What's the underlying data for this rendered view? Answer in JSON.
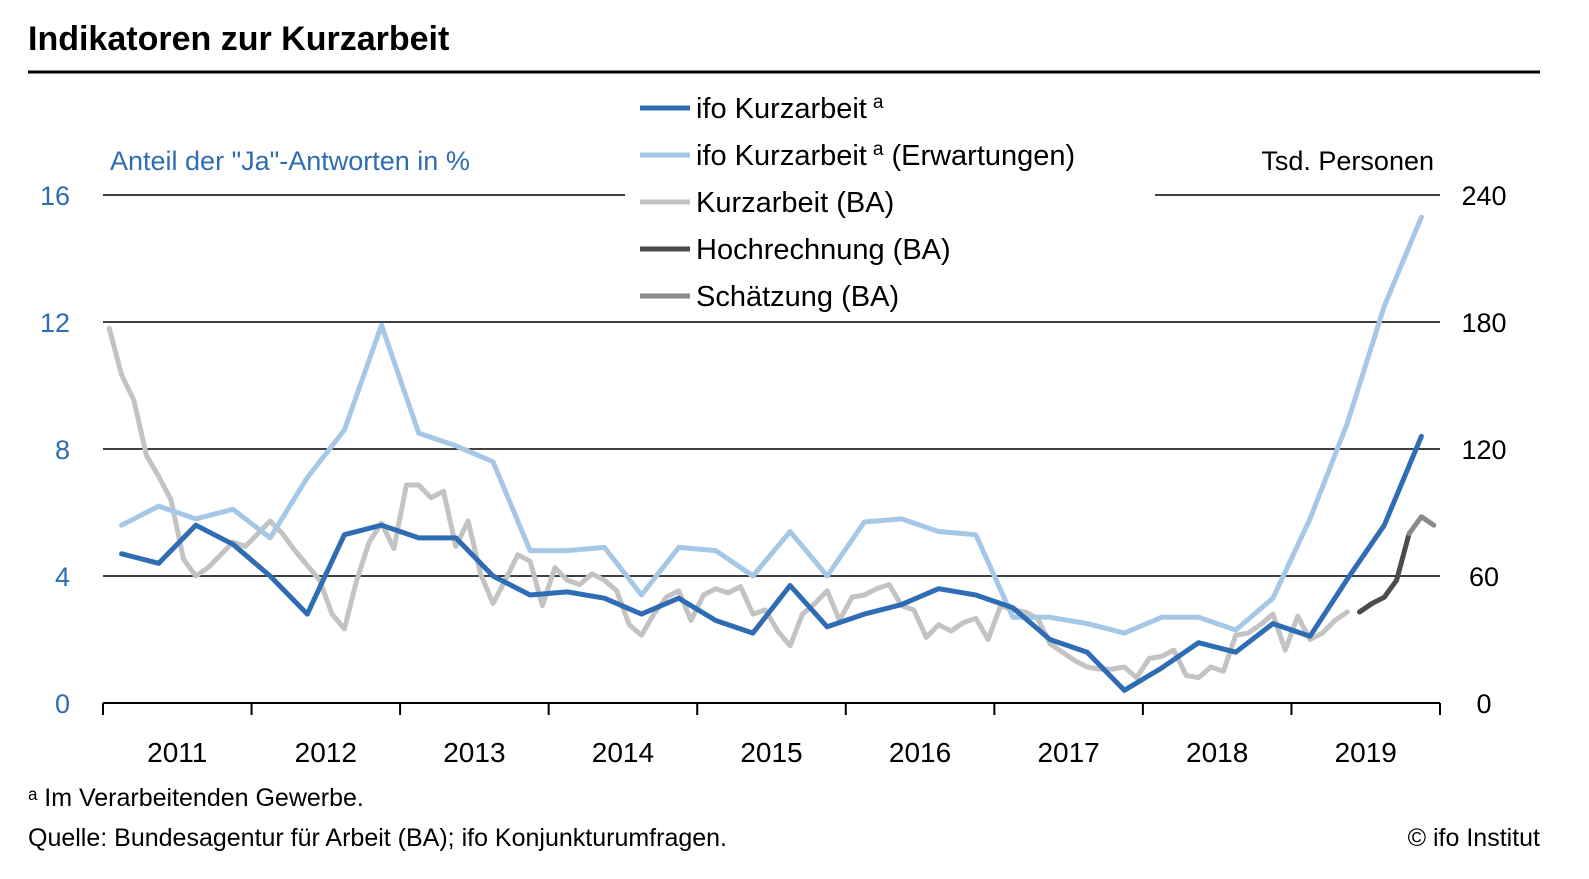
{
  "chart_data": {
    "type": "line",
    "title": "Indikatoren zur Kurzarbeit",
    "ylabel_left": "Anteil der \"Ja\"-Antworten in %",
    "ylabel_right": "Tsd. Personen",
    "ylim_left": [
      0,
      16
    ],
    "ylim_right": [
      0,
      240
    ],
    "yticks_left": [
      "0",
      "4",
      "8",
      "12",
      "16"
    ],
    "yticks_right": [
      "0",
      "60",
      "120",
      "180",
      "240"
    ],
    "xlim": [
      2010.5,
      2019.5
    ],
    "years": [
      "2011",
      "2012",
      "2013",
      "2014",
      "2015",
      "2016",
      "2017",
      "2018",
      "2019"
    ],
    "grid": "horizontal",
    "legend_position": "top-center",
    "series": [
      {
        "name": "ifo Kurzarbeit",
        "superscript": "a",
        "axis": "left",
        "color": "#2e6db4",
        "x": [
          2010.625,
          2010.875,
          2011.125,
          2011.375,
          2011.625,
          2011.875,
          2012.125,
          2012.375,
          2012.625,
          2012.875,
          2013.125,
          2013.375,
          2013.625,
          2013.875,
          2014.125,
          2014.375,
          2014.625,
          2014.875,
          2015.125,
          2015.375,
          2015.625,
          2015.875,
          2016.125,
          2016.375,
          2016.625,
          2016.875,
          2017.125,
          2017.375,
          2017.625,
          2017.875,
          2018.125,
          2018.375,
          2018.625,
          2018.875,
          2019.125,
          2019.375
        ],
        "y": [
          4.7,
          4.4,
          5.6,
          5.0,
          4.0,
          2.8,
          5.3,
          5.6,
          5.2,
          5.2,
          4.0,
          3.4,
          3.5,
          3.3,
          2.8,
          3.3,
          2.6,
          2.2,
          3.7,
          2.4,
          2.8,
          3.1,
          3.6,
          3.4,
          3.0,
          2.0,
          1.6,
          0.4,
          1.1,
          1.9,
          1.6,
          2.5,
          2.1,
          3.9,
          5.6,
          8.4
        ]
      },
      {
        "name": "ifo Kurzarbeit",
        "superscript": "a",
        "suffix": "(Erwartungen)",
        "axis": "left",
        "color": "#a6c8e6",
        "x": [
          2010.625,
          2010.875,
          2011.125,
          2011.375,
          2011.625,
          2011.875,
          2012.125,
          2012.375,
          2012.625,
          2012.875,
          2013.125,
          2013.375,
          2013.625,
          2013.875,
          2014.125,
          2014.375,
          2014.625,
          2014.875,
          2015.125,
          2015.375,
          2015.625,
          2015.875,
          2016.125,
          2016.375,
          2016.625,
          2016.875,
          2017.125,
          2017.375,
          2017.625,
          2017.875,
          2018.125,
          2018.375,
          2018.625,
          2018.875,
          2019.125,
          2019.375
        ],
        "y": [
          5.6,
          6.2,
          5.8,
          6.1,
          5.2,
          7.1,
          8.6,
          11.9,
          8.5,
          8.1,
          7.6,
          4.8,
          4.8,
          4.9,
          3.4,
          4.9,
          4.8,
          4.0,
          5.4,
          4.0,
          5.7,
          5.8,
          5.4,
          5.3,
          2.7,
          2.7,
          2.5,
          2.2,
          2.7,
          2.7,
          2.3,
          3.3,
          5.8,
          8.8,
          12.5,
          15.3
        ]
      },
      {
        "name": "Kurzarbeit (BA)",
        "axis": "right",
        "color": "#c3c3c3",
        "x": [
          2010.542,
          2010.625,
          2010.708,
          2010.792,
          2010.875,
          2010.958,
          2011.042,
          2011.125,
          2011.208,
          2011.292,
          2011.375,
          2011.458,
          2011.542,
          2011.625,
          2011.708,
          2011.792,
          2011.875,
          2011.958,
          2012.042,
          2012.125,
          2012.208,
          2012.292,
          2012.375,
          2012.458,
          2012.542,
          2012.625,
          2012.708,
          2012.792,
          2012.875,
          2012.958,
          2013.042,
          2013.125,
          2013.208,
          2013.292,
          2013.375,
          2013.458,
          2013.542,
          2013.625,
          2013.708,
          2013.792,
          2013.875,
          2013.958,
          2014.042,
          2014.125,
          2014.208,
          2014.292,
          2014.375,
          2014.458,
          2014.542,
          2014.625,
          2014.708,
          2014.792,
          2014.875,
          2014.958,
          2015.042,
          2015.125,
          2015.208,
          2015.292,
          2015.375,
          2015.458,
          2015.542,
          2015.625,
          2015.708,
          2015.792,
          2015.875,
          2015.958,
          2016.042,
          2016.125,
          2016.208,
          2016.292,
          2016.375,
          2016.458,
          2016.542,
          2016.625,
          2016.708,
          2016.792,
          2016.875,
          2016.958,
          2017.042,
          2017.125,
          2017.208,
          2017.292,
          2017.375,
          2017.458,
          2017.542,
          2017.625,
          2017.708,
          2017.792,
          2017.875,
          2017.958,
          2018.042,
          2018.125,
          2018.208,
          2018.292,
          2018.375,
          2018.458,
          2018.542,
          2018.625,
          2018.708,
          2018.792,
          2018.875
        ],
        "y": [
          177,
          155,
          143,
          117,
          107,
          96,
          68,
          60,
          64,
          70,
          76,
          74,
          80,
          86,
          80,
          72,
          65,
          58,
          42,
          35,
          58,
          76,
          85,
          73,
          103,
          103,
          97,
          100,
          74,
          86,
          61,
          47,
          58,
          70,
          67,
          46,
          64,
          58,
          56,
          61,
          58,
          53,
          37,
          32,
          42,
          50,
          53,
          39,
          51,
          54,
          52,
          55,
          42,
          44,
          34,
          27,
          42,
          47,
          53,
          39,
          50,
          51,
          54,
          56,
          46,
          44,
          31,
          37,
          34,
          38,
          40,
          30,
          46,
          44,
          43,
          40,
          28,
          24,
          20,
          17,
          16,
          16,
          17,
          12,
          21,
          22,
          25,
          13,
          12,
          17,
          15,
          32,
          33,
          37,
          42,
          25,
          41,
          30,
          33,
          39,
          43
        ]
      },
      {
        "name": "Hochrechnung (BA)",
        "axis": "right",
        "color": "#4c4c4c",
        "x": [
          2018.958,
          2019.042,
          2019.125,
          2019.208,
          2019.292
        ],
        "y": [
          43,
          47,
          50,
          58,
          80
        ]
      },
      {
        "name": "Schätzung (BA)",
        "axis": "right",
        "color": "#8a8a8a",
        "x": [
          2019.292,
          2019.375,
          2019.458
        ],
        "y": [
          80,
          88,
          84
        ]
      }
    ]
  },
  "footnote": "ᵃ Im Verarbeitenden Gewerbe.",
  "source": "Quelle: Bundesagentur für Arbeit (BA); ifo Konjunkturumfragen.",
  "copyright": "© ifo Institut"
}
